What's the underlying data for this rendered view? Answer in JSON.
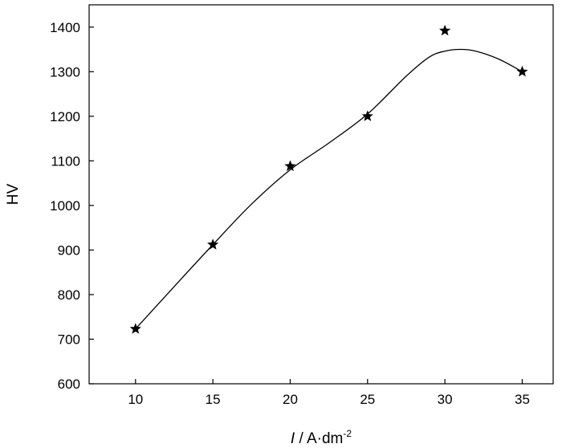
{
  "chart_data": {
    "type": "scatter",
    "xlabel_parts": {
      "italic": "I",
      "rest": " / A·dm",
      "superscript": "-2"
    },
    "ylabel": "HV",
    "xlim": [
      7,
      37
    ],
    "ylim": [
      600,
      1450
    ],
    "x_ticks": [
      10,
      15,
      20,
      25,
      30,
      35
    ],
    "y_ticks": [
      600,
      700,
      800,
      900,
      1000,
      1100,
      1200,
      1300,
      1400
    ],
    "series": [
      {
        "marker": "star",
        "points": [
          {
            "x": 10,
            "y": 723
          },
          {
            "x": 15,
            "y": 912
          },
          {
            "x": 20,
            "y": 1088
          },
          {
            "x": 25,
            "y": 1200
          },
          {
            "x": 30,
            "y": 1392
          },
          {
            "x": 35,
            "y": 1300
          }
        ]
      }
    ],
    "fit_curve": [
      {
        "x": 10,
        "y": 723
      },
      {
        "x": 12.5,
        "y": 818
      },
      {
        "x": 15,
        "y": 912
      },
      {
        "x": 17.5,
        "y": 1003
      },
      {
        "x": 20,
        "y": 1080
      },
      {
        "x": 22.5,
        "y": 1140
      },
      {
        "x": 25,
        "y": 1205
      },
      {
        "x": 27.5,
        "y": 1290
      },
      {
        "x": 29,
        "y": 1333
      },
      {
        "x": 30,
        "y": 1346
      },
      {
        "x": 31,
        "y": 1350
      },
      {
        "x": 32,
        "y": 1346
      },
      {
        "x": 33.5,
        "y": 1328
      },
      {
        "x": 35,
        "y": 1300
      }
    ],
    "grid": false,
    "legend": "none",
    "colors": {
      "ink": "#000000",
      "background": "#ffffff"
    }
  }
}
